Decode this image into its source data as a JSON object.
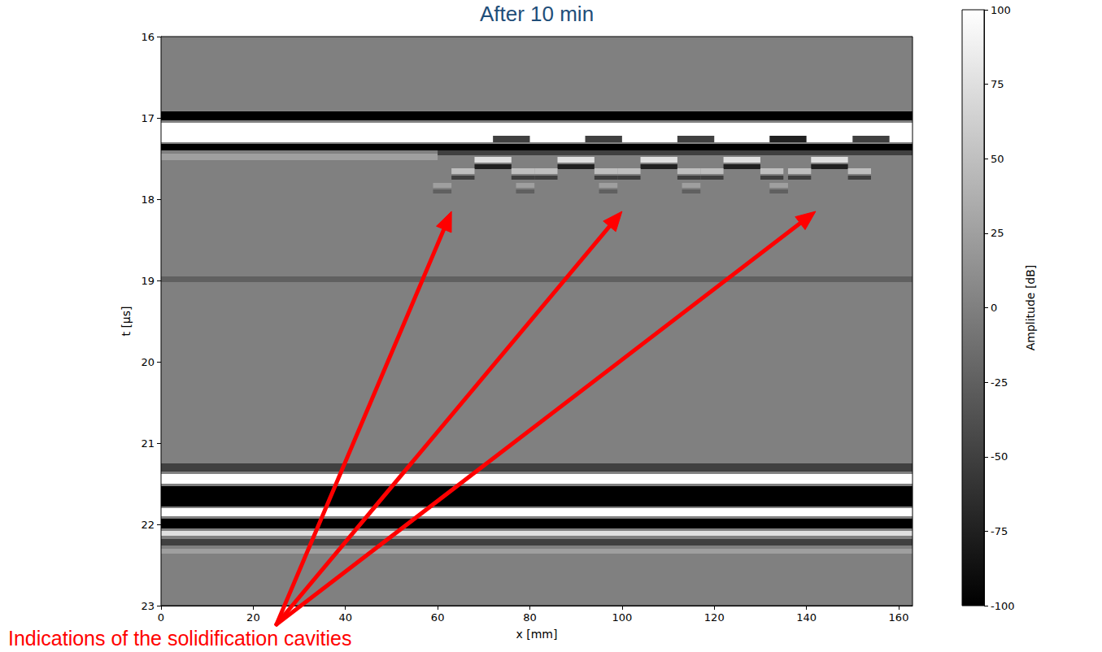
{
  "chart_data": {
    "type": "heatmap",
    "title": "After 10 min",
    "x_label": "x [mm]",
    "y_label": "t [µs]",
    "xlim": [
      0,
      163
    ],
    "ylim": [
      23,
      16
    ],
    "xticks": [
      0,
      20,
      40,
      60,
      80,
      100,
      120,
      140,
      160
    ],
    "yticks": [
      16,
      17,
      18,
      19,
      20,
      21,
      22,
      23
    ],
    "grid": false,
    "colorbar": {
      "label": "Amplitude [dB]",
      "range": [
        -100,
        100
      ],
      "ticks": [
        -100,
        -75,
        -50,
        -25,
        0,
        25,
        50,
        75,
        100
      ]
    },
    "cells": [
      {
        "x": [
          0,
          163
        ],
        "t": [
          16,
          23
        ],
        "dB": 0
      },
      {
        "x": [
          0,
          163
        ],
        "t": [
          16.92,
          17.03
        ],
        "dB": -100
      },
      {
        "x": [
          0,
          163
        ],
        "t": [
          17.06,
          17.3
        ],
        "dB": 100
      },
      {
        "x": [
          0,
          163
        ],
        "t": [
          17.32,
          17.4
        ],
        "dB": -100
      },
      {
        "x": [
          0,
          60
        ],
        "t": [
          17.44,
          17.52
        ],
        "dB": 25
      },
      {
        "x": [
          60,
          163
        ],
        "t": [
          17.4,
          17.46
        ],
        "dB": -50
      },
      {
        "x": [
          72,
          80
        ],
        "t": [
          17.22,
          17.3
        ],
        "dB": -50
      },
      {
        "x": [
          92,
          100
        ],
        "t": [
          17.22,
          17.3
        ],
        "dB": -50
      },
      {
        "x": [
          112,
          120
        ],
        "t": [
          17.22,
          17.3
        ],
        "dB": -50
      },
      {
        "x": [
          132,
          140
        ],
        "t": [
          17.22,
          17.3
        ],
        "dB": -75
      },
      {
        "x": [
          150,
          158
        ],
        "t": [
          17.22,
          17.3
        ],
        "dB": -50
      },
      {
        "x": [
          68,
          76
        ],
        "t": [
          17.48,
          17.55
        ],
        "dB": 75
      },
      {
        "x": [
          68,
          76
        ],
        "t": [
          17.57,
          17.63
        ],
        "dB": -75
      },
      {
        "x": [
          63,
          68
        ],
        "t": [
          17.62,
          17.69
        ],
        "dB": 50
      },
      {
        "x": [
          63,
          68
        ],
        "t": [
          17.71,
          17.76
        ],
        "dB": -50
      },
      {
        "x": [
          76,
          81
        ],
        "t": [
          17.62,
          17.69
        ],
        "dB": 50
      },
      {
        "x": [
          76,
          81
        ],
        "t": [
          17.71,
          17.76
        ],
        "dB": -50
      },
      {
        "x": [
          59,
          63
        ],
        "t": [
          17.8,
          17.86
        ],
        "dB": 25
      },
      {
        "x": [
          59,
          63
        ],
        "t": [
          17.88,
          17.93
        ],
        "dB": -25
      },
      {
        "x": [
          86,
          94
        ],
        "t": [
          17.48,
          17.55
        ],
        "dB": 75
      },
      {
        "x": [
          86,
          94
        ],
        "t": [
          17.57,
          17.63
        ],
        "dB": -75
      },
      {
        "x": [
          81,
          86
        ],
        "t": [
          17.62,
          17.69
        ],
        "dB": 50
      },
      {
        "x": [
          81,
          86
        ],
        "t": [
          17.71,
          17.76
        ],
        "dB": -50
      },
      {
        "x": [
          94,
          99
        ],
        "t": [
          17.62,
          17.69
        ],
        "dB": 50
      },
      {
        "x": [
          94,
          99
        ],
        "t": [
          17.71,
          17.76
        ],
        "dB": -50
      },
      {
        "x": [
          77,
          81
        ],
        "t": [
          17.8,
          17.86
        ],
        "dB": 25
      },
      {
        "x": [
          77,
          81
        ],
        "t": [
          17.88,
          17.93
        ],
        "dB": -25
      },
      {
        "x": [
          104,
          112
        ],
        "t": [
          17.48,
          17.55
        ],
        "dB": 75
      },
      {
        "x": [
          104,
          112
        ],
        "t": [
          17.57,
          17.63
        ],
        "dB": -75
      },
      {
        "x": [
          99,
          104
        ],
        "t": [
          17.62,
          17.69
        ],
        "dB": 50
      },
      {
        "x": [
          99,
          104
        ],
        "t": [
          17.71,
          17.76
        ],
        "dB": -50
      },
      {
        "x": [
          112,
          117
        ],
        "t": [
          17.62,
          17.69
        ],
        "dB": 50
      },
      {
        "x": [
          112,
          117
        ],
        "t": [
          17.71,
          17.76
        ],
        "dB": -50
      },
      {
        "x": [
          95,
          99
        ],
        "t": [
          17.8,
          17.86
        ],
        "dB": 25
      },
      {
        "x": [
          95,
          99
        ],
        "t": [
          17.88,
          17.93
        ],
        "dB": -25
      },
      {
        "x": [
          122,
          130
        ],
        "t": [
          17.48,
          17.55
        ],
        "dB": 75
      },
      {
        "x": [
          122,
          130
        ],
        "t": [
          17.57,
          17.63
        ],
        "dB": -75
      },
      {
        "x": [
          117,
          122
        ],
        "t": [
          17.62,
          17.69
        ],
        "dB": 50
      },
      {
        "x": [
          117,
          122
        ],
        "t": [
          17.71,
          17.76
        ],
        "dB": -50
      },
      {
        "x": [
          130,
          135
        ],
        "t": [
          17.62,
          17.69
        ],
        "dB": 50
      },
      {
        "x": [
          130,
          135
        ],
        "t": [
          17.71,
          17.76
        ],
        "dB": -50
      },
      {
        "x": [
          113,
          117
        ],
        "t": [
          17.8,
          17.86
        ],
        "dB": 25
      },
      {
        "x": [
          113,
          117
        ],
        "t": [
          17.88,
          17.93
        ],
        "dB": -25
      },
      {
        "x": [
          141,
          149
        ],
        "t": [
          17.48,
          17.55
        ],
        "dB": 75
      },
      {
        "x": [
          141,
          149
        ],
        "t": [
          17.57,
          17.63
        ],
        "dB": -75
      },
      {
        "x": [
          136,
          141
        ],
        "t": [
          17.62,
          17.69
        ],
        "dB": 50
      },
      {
        "x": [
          136,
          141
        ],
        "t": [
          17.71,
          17.76
        ],
        "dB": -50
      },
      {
        "x": [
          149,
          154
        ],
        "t": [
          17.62,
          17.69
        ],
        "dB": 50
      },
      {
        "x": [
          149,
          154
        ],
        "t": [
          17.71,
          17.76
        ],
        "dB": -50
      },
      {
        "x": [
          132,
          136
        ],
        "t": [
          17.8,
          17.86
        ],
        "dB": 25
      },
      {
        "x": [
          132,
          136
        ],
        "t": [
          17.88,
          17.93
        ],
        "dB": -25
      },
      {
        "x": [
          0,
          163
        ],
        "t": [
          18.95,
          19.02
        ],
        "dB": -25
      },
      {
        "x": [
          0,
          163
        ],
        "t": [
          21.25,
          21.35
        ],
        "dB": -50
      },
      {
        "x": [
          0,
          163
        ],
        "t": [
          21.38,
          21.5
        ],
        "dB": 100
      },
      {
        "x": [
          0,
          163
        ],
        "t": [
          21.53,
          21.78
        ],
        "dB": -100
      },
      {
        "x": [
          0,
          163
        ],
        "t": [
          21.8,
          21.9
        ],
        "dB": 100
      },
      {
        "x": [
          0,
          163
        ],
        "t": [
          21.93,
          22.05
        ],
        "dB": -100
      },
      {
        "x": [
          0,
          163
        ],
        "t": [
          22.08,
          22.14
        ],
        "dB": 75
      },
      {
        "x": [
          0,
          163
        ],
        "t": [
          22.18,
          22.26
        ],
        "dB": -50
      },
      {
        "x": [
          0,
          163
        ],
        "t": [
          22.3,
          22.36
        ],
        "dB": 25
      }
    ],
    "annotation": {
      "text": "Indications of the solidification cavities",
      "color": "#ff0000",
      "points": [
        [
          63,
          18.15
        ],
        [
          100,
          18.15
        ],
        [
          142,
          18.15
        ]
      ]
    }
  }
}
